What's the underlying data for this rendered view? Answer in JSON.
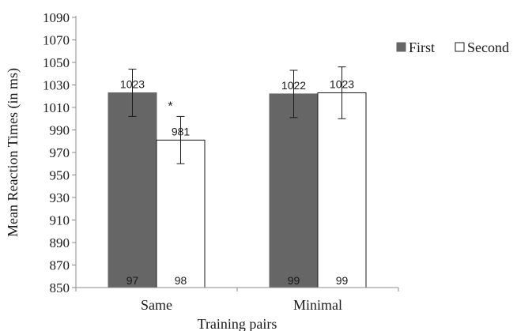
{
  "chart_data": {
    "type": "bar",
    "title": "",
    "xlabel": "Training pairs",
    "ylabel": "Mean Reaction Times (in ms)",
    "ylim": [
      850,
      1090
    ],
    "yticks": [
      850,
      870,
      890,
      910,
      930,
      950,
      970,
      990,
      1010,
      1030,
      1050,
      1070,
      1090
    ],
    "categories": [
      "Same",
      "Minimal"
    ],
    "series": [
      {
        "name": "First",
        "color": "#666666",
        "values": [
          1023,
          1022
        ],
        "error": [
          21,
          21
        ],
        "value_labels": [
          "1023",
          "1022"
        ],
        "n_labels": [
          "97",
          "99"
        ]
      },
      {
        "name": "Second",
        "color": "#ffffff",
        "values": [
          981,
          1023
        ],
        "error": [
          21,
          23
        ],
        "value_labels": [
          "981",
          "1023"
        ],
        "n_labels": [
          "98",
          "99"
        ]
      }
    ],
    "annotations": [
      {
        "text": "*",
        "category": 0,
        "series": 1
      }
    ],
    "legend": {
      "placement": "top-right"
    },
    "grid": false
  }
}
